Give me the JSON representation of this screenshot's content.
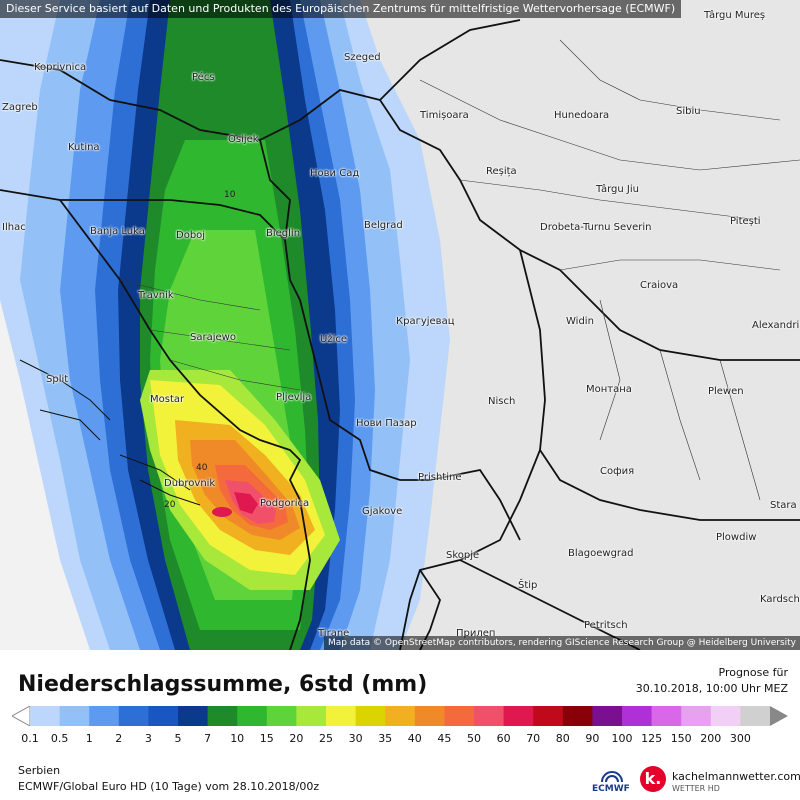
{
  "header": {
    "notice": "Dieser Service basiert auf Daten und Produkten des Europäischen Zentrums für mittelfristige Wettervorhersage (ECMWF)"
  },
  "map": {
    "attribution": "Map data © OpenStreetMap contributors, rendering GIScience Research Group @ Heidelberg University",
    "cities": [
      {
        "name": "Koprivnica"
      },
      {
        "name": "Zagreb"
      },
      {
        "name": "Pécs"
      },
      {
        "name": "Szeged"
      },
      {
        "name": "Osijek"
      },
      {
        "name": "Kutina"
      },
      {
        "name": "Нови Сад"
      },
      {
        "name": "Banja Luka"
      },
      {
        "name": "Doboj"
      },
      {
        "name": "Bieglin"
      },
      {
        "name": "Belgrad"
      },
      {
        "name": "Travnik"
      },
      {
        "name": "Sarajewo"
      },
      {
        "name": "Užice"
      },
      {
        "name": "Крагујевац"
      },
      {
        "name": "Split"
      },
      {
        "name": "Mostar"
      },
      {
        "name": "Pljevlja"
      },
      {
        "name": "Нови Пазар"
      },
      {
        "name": "Nisch"
      },
      {
        "name": "Dubrovnik"
      },
      {
        "name": "Podgorica"
      },
      {
        "name": "Prishtine"
      },
      {
        "name": "Gjakove"
      },
      {
        "name": "Skopje"
      },
      {
        "name": "Tirane"
      },
      {
        "name": "Timișoara"
      },
      {
        "name": "Hunedoara"
      },
      {
        "name": "Sibiu"
      },
      {
        "name": "Reșița"
      },
      {
        "name": "Târgu Jiu"
      },
      {
        "name": "Pitești"
      },
      {
        "name": "Drobeta-Turnu Severin"
      },
      {
        "name": "Craiova"
      },
      {
        "name": "Widin"
      },
      {
        "name": "Монтана"
      },
      {
        "name": "Plewen"
      },
      {
        "name": "София"
      },
      {
        "name": "Plowdiw"
      },
      {
        "name": "Blagoewgrad"
      },
      {
        "name": "Alexandria"
      },
      {
        "name": "Stara"
      },
      {
        "name": "Kardsch"
      },
      {
        "name": "Târgu Mureș"
      },
      {
        "name": "Petritsch"
      },
      {
        "name": "Štip"
      },
      {
        "name": "Прилеп"
      },
      {
        "name": "Ilhac"
      }
    ],
    "contour_labels": [
      "10",
      "20",
      "40"
    ]
  },
  "legend": {
    "title": "Niederschlagssumme, 6std (mm)",
    "forecast_label": "Prognose für",
    "forecast_date": "30.10.2018, 10:00 Uhr MEZ",
    "ticks": [
      "0.1",
      "0.5",
      "1",
      "2",
      "3",
      "5",
      "7",
      "10",
      "15",
      "20",
      "25",
      "30",
      "35",
      "40",
      "45",
      "50",
      "60",
      "70",
      "80",
      "90",
      "100",
      "125",
      "150",
      "200",
      "300"
    ],
    "colors": [
      "#bcd7fb",
      "#93c0f6",
      "#5d9af0",
      "#2e6fd6",
      "#1a56c2",
      "#0b3a8c",
      "#1e8a2a",
      "#2fb82f",
      "#5fd33a",
      "#a8e83b",
      "#f2f23a",
      "#dcd400",
      "#f0b020",
      "#f08a28",
      "#f46a3c",
      "#f0506a",
      "#e01850",
      "#c00a1c",
      "#8a0008",
      "#7a1090",
      "#b030d8",
      "#d868e8",
      "#e8a0f0",
      "#f2d0f6",
      "#d0d0d0"
    ],
    "region": "Serbien",
    "model": "ECMWF/Global Euro HD (10 Tage) vom 28.10.2018/00z",
    "ecmwf_label": "ECMWF",
    "brand_letter": "k.",
    "brand_name": "kachelmannwetter.com",
    "brand_sub": "WETTER HD"
  }
}
